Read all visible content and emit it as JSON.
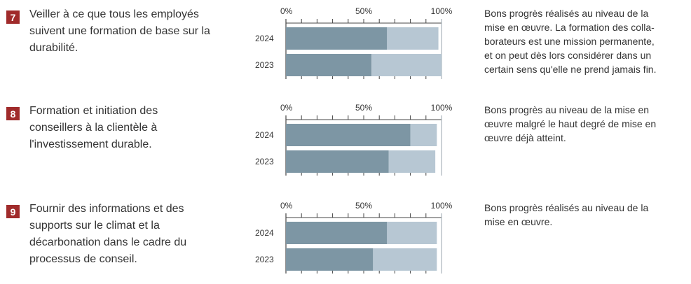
{
  "colors": {
    "badge": "#a02b2b",
    "bar_progress": "#7d96a4",
    "bar_target": "#b7c7d3",
    "axis": "#444444"
  },
  "rows": [
    {
      "number": "7",
      "objective_lines": [
        "Veiller à ce que tous les employés",
        "suivent une formation de base sur la",
        "durabilité."
      ],
      "comment_lines": [
        "Bons progrès réalisés au niveau de la",
        "mise en œuvre. La formation des colla-",
        "borateurs est une mission permanente,",
        "et on peut dès lors considérer dans un",
        "certain sens qu'elle ne prend jamais fin."
      ]
    },
    {
      "number": "8",
      "objective_lines": [
        "Formation et initiation des",
        "conseillers à la clientèle à",
        "l'investissement durable."
      ],
      "comment_lines": [
        "Bons progrès au niveau de la mise en",
        "œuvre malgré le haut degré de mise en",
        "œuvre déjà atteint."
      ]
    },
    {
      "number": "9",
      "objective_lines": [
        "Fournir des informations et des",
        "supports sur le climat et la",
        "décarbonation dans le cadre du",
        "processus de conseil."
      ],
      "comment_lines": [
        "Bons progrès réalisés au niveau de la",
        "mise en œuvre."
      ]
    }
  ],
  "chart_data": [
    {
      "type": "bar",
      "orientation": "horizontal",
      "stacked": true,
      "categories": [
        "2024",
        "2023"
      ],
      "tick_labels": [
        "0%",
        "50%",
        "100%"
      ],
      "xlim": [
        0,
        100
      ],
      "series": [
        {
          "values": [
            65,
            55
          ]
        },
        {
          "values": [
            33,
            45
          ]
        }
      ]
    },
    {
      "type": "bar",
      "orientation": "horizontal",
      "stacked": true,
      "categories": [
        "2024",
        "2023"
      ],
      "tick_labels": [
        "0%",
        "50%",
        "100%"
      ],
      "xlim": [
        0,
        100
      ],
      "series": [
        {
          "values": [
            80,
            66
          ]
        },
        {
          "values": [
            17,
            30
          ]
        }
      ]
    },
    {
      "type": "bar",
      "orientation": "horizontal",
      "stacked": true,
      "categories": [
        "2024",
        "2023"
      ],
      "tick_labels": [
        "0%",
        "50%",
        "100%"
      ],
      "xlim": [
        0,
        100
      ],
      "series": [
        {
          "values": [
            65,
            56
          ]
        },
        {
          "values": [
            32,
            41
          ]
        }
      ]
    }
  ]
}
